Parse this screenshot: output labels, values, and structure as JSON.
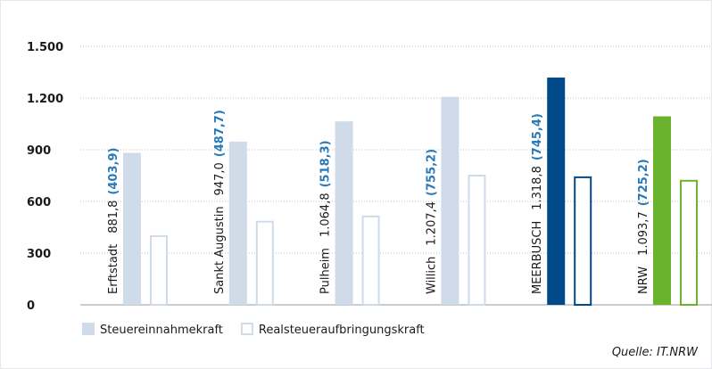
{
  "chart_data": {
    "type": "bar",
    "categories": [
      "Erftstadt",
      "Sankt Augustin",
      "Pulheim",
      "Willich",
      "MEERBUSCH",
      "NRW"
    ],
    "series": [
      {
        "name": "Steuereinnahmekraft",
        "color": "#cfdbe8",
        "colors": [
          "#cfdbe8",
          "#cfdbe8",
          "#cfdbe8",
          "#cfdbe8",
          "#004a8a",
          "#6ab42d"
        ],
        "values": [
          881.8,
          947.0,
          1064.8,
          1207.4,
          1318.8,
          1093.7
        ],
        "value_labels": [
          "881,8",
          "947,0",
          "1.064,8",
          "1.207,4",
          "1.318,8",
          "1.093,7"
        ]
      },
      {
        "name": "Realsteueraufbringungskraft",
        "color": "#cfdbe8",
        "colors": [
          "#cfdbe8",
          "#cfdbe8",
          "#cfdbe8",
          "#cfdbe8",
          "#004a8a",
          "#6ab42d"
        ],
        "values": [
          403.9,
          487.7,
          518.3,
          755.2,
          745.4,
          725.2
        ],
        "value_labels": [
          "(403,9)",
          "(487,7)",
          "(518,3)",
          "(755,2)",
          "(745,4)",
          "(725,2)"
        ]
      }
    ],
    "value_label_color": "#2a7ab8",
    "ylim": [
      0,
      1500
    ],
    "yticks": [
      0,
      300,
      600,
      900,
      {
        "value": 1200,
        "label": "1.200"
      },
      {
        "value": 1500,
        "label": "1.500"
      }
    ],
    "grid": true,
    "source": "Quelle: IT.NRW"
  }
}
